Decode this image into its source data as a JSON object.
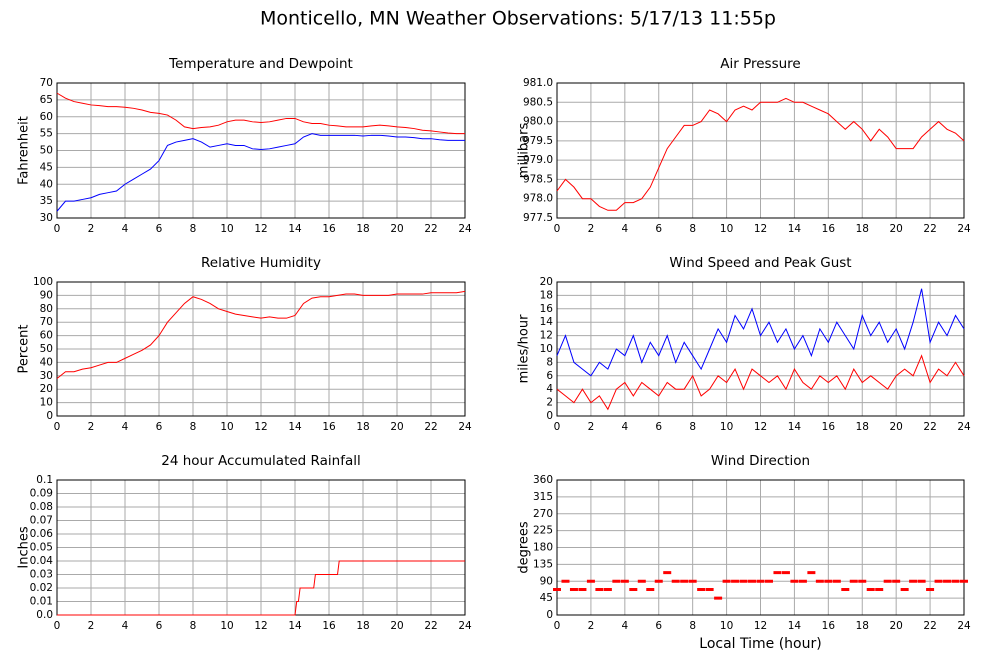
{
  "title": "Monticello, MN Weather Observations: 5/17/13 11:55p",
  "chart_data": [
    {
      "type": "line",
      "title": "Temperature and Dewpoint",
      "ylabel": "Fahrenheit",
      "x": [
        0,
        0.5,
        1,
        1.5,
        2,
        2.5,
        3,
        3.5,
        4,
        4.5,
        5,
        5.5,
        6,
        6.5,
        7,
        7.5,
        8,
        8.5,
        9,
        9.5,
        10,
        10.5,
        11,
        11.5,
        12,
        12.5,
        13,
        13.5,
        14,
        14.5,
        15,
        15.5,
        16,
        16.5,
        17,
        17.5,
        18,
        18.5,
        19,
        19.5,
        20,
        20.5,
        21,
        21.5,
        22,
        22.5,
        23,
        23.5,
        24
      ],
      "series": [
        {
          "name": "Temperature",
          "color": "#ff0000",
          "values": [
            67,
            65.5,
            64.5,
            64,
            63.5,
            63.3,
            63,
            63,
            62.8,
            62.5,
            62,
            61.3,
            61,
            60.5,
            59,
            57,
            56.5,
            56.8,
            57,
            57.5,
            58.5,
            59,
            59,
            58.5,
            58.3,
            58.5,
            59,
            59.5,
            59.5,
            58.5,
            58,
            58,
            57.5,
            57.3,
            57,
            57,
            57,
            57.3,
            57.5,
            57.3,
            57,
            56.8,
            56.5,
            56,
            55.8,
            55.5,
            55.2,
            55,
            55
          ]
        },
        {
          "name": "Dewpoint",
          "color": "#0000ff",
          "values": [
            32,
            35,
            35,
            35.5,
            36,
            37,
            37.5,
            38,
            40,
            41.5,
            43,
            44.5,
            47,
            51.5,
            52.5,
            53,
            53.5,
            52.5,
            51,
            51.5,
            52,
            51.5,
            51.5,
            50.5,
            50.3,
            50.5,
            51,
            51.5,
            52,
            54,
            55,
            54.5,
            54.5,
            54.5,
            54.5,
            54.5,
            54.3,
            54.5,
            54.5,
            54.3,
            54,
            54,
            53.8,
            53.5,
            53.5,
            53.2,
            53,
            53,
            53
          ]
        }
      ],
      "xlim": [
        0,
        24
      ],
      "xticks": [
        0,
        2,
        4,
        6,
        8,
        10,
        12,
        14,
        16,
        18,
        20,
        22,
        24
      ],
      "ylim": [
        30,
        70
      ],
      "yticks": [
        30,
        35,
        40,
        45,
        50,
        55,
        60,
        65,
        70
      ],
      "grid": true
    },
    {
      "type": "line",
      "title": "Air Pressure",
      "ylabel": "millibars",
      "x": [
        0,
        0.5,
        1,
        1.5,
        2,
        2.5,
        3,
        3.5,
        4,
        4.5,
        5,
        5.5,
        6,
        6.5,
        7,
        7.5,
        8,
        8.5,
        9,
        9.5,
        10,
        10.5,
        11,
        11.5,
        12,
        12.5,
        13,
        13.5,
        14,
        14.5,
        15,
        15.5,
        16,
        16.5,
        17,
        17.5,
        18,
        18.5,
        19,
        19.5,
        20,
        20.5,
        21,
        21.5,
        22,
        22.5,
        23,
        23.5,
        24
      ],
      "series": [
        {
          "name": "Pressure",
          "color": "#ff0000",
          "values": [
            978.2,
            978.5,
            978.3,
            978.0,
            978.0,
            977.8,
            977.7,
            977.7,
            977.9,
            977.9,
            978.0,
            978.3,
            978.8,
            979.3,
            979.6,
            979.9,
            979.9,
            980.0,
            980.3,
            980.2,
            980.0,
            980.3,
            980.4,
            980.3,
            980.5,
            980.5,
            980.5,
            980.6,
            980.5,
            980.5,
            980.4,
            980.3,
            980.2,
            980.0,
            979.8,
            980.0,
            979.8,
            979.5,
            979.8,
            979.6,
            979.3,
            979.3,
            979.3,
            979.6,
            979.8,
            980.0,
            979.8,
            979.7,
            979.5
          ]
        }
      ],
      "xlim": [
        0,
        24
      ],
      "xticks": [
        0,
        2,
        4,
        6,
        8,
        10,
        12,
        14,
        16,
        18,
        20,
        22,
        24
      ],
      "ylim": [
        977.5,
        981
      ],
      "yticks": [
        977.5,
        {
          "value": 978,
          "label": "978.0"
        },
        978.5,
        {
          "value": 979,
          "label": "979.0"
        },
        979.5,
        {
          "value": 980,
          "label": "980.0"
        },
        980.5,
        {
          "value": 981,
          "label": "981.0"
        }
      ],
      "grid": true
    },
    {
      "type": "line",
      "title": "Relative Humidity",
      "ylabel": "Percent",
      "x": [
        0,
        0.5,
        1,
        1.5,
        2,
        2.5,
        3,
        3.5,
        4,
        4.5,
        5,
        5.5,
        6,
        6.5,
        7,
        7.5,
        8,
        8.5,
        9,
        9.5,
        10,
        10.5,
        11,
        11.5,
        12,
        12.5,
        13,
        13.5,
        14,
        14.5,
        15,
        15.5,
        16,
        16.5,
        17,
        17.5,
        18,
        18.5,
        19,
        19.5,
        20,
        20.5,
        21,
        21.5,
        22,
        22.5,
        23,
        23.5,
        24
      ],
      "series": [
        {
          "name": "Humidity",
          "color": "#ff0000",
          "values": [
            28,
            33,
            33,
            35,
            36,
            38,
            40,
            40,
            43,
            46,
            49,
            53,
            60,
            70,
            77,
            84,
            89,
            87,
            84,
            80,
            78,
            76,
            75,
            74,
            73,
            74,
            73,
            73,
            75,
            84,
            88,
            89,
            89,
            90,
            91,
            91,
            90,
            90,
            90,
            90,
            91,
            91,
            91,
            91,
            92,
            92,
            92,
            92,
            93
          ]
        }
      ],
      "xlim": [
        0,
        24
      ],
      "xticks": [
        0,
        2,
        4,
        6,
        8,
        10,
        12,
        14,
        16,
        18,
        20,
        22,
        24
      ],
      "ylim": [
        0,
        100
      ],
      "yticks": [
        0,
        10,
        20,
        30,
        40,
        50,
        60,
        70,
        80,
        90,
        100
      ],
      "grid": true
    },
    {
      "type": "line",
      "title": "Wind Speed and Peak Gust",
      "ylabel": "miles/hour",
      "x": [
        0,
        0.5,
        1,
        1.5,
        2,
        2.5,
        3,
        3.5,
        4,
        4.5,
        5,
        5.5,
        6,
        6.5,
        7,
        7.5,
        8,
        8.5,
        9,
        9.5,
        10,
        10.5,
        11,
        11.5,
        12,
        12.5,
        13,
        13.5,
        14,
        14.5,
        15,
        15.5,
        16,
        16.5,
        17,
        17.5,
        18,
        18.5,
        19,
        19.5,
        20,
        20.5,
        21,
        21.5,
        22,
        22.5,
        23,
        23.5,
        24
      ],
      "series": [
        {
          "name": "Peak Gust",
          "color": "#0000ff",
          "values": [
            9,
            12,
            8,
            7,
            6,
            8,
            7,
            10,
            9,
            12,
            8,
            11,
            9,
            12,
            8,
            11,
            9,
            7,
            10,
            13,
            11,
            15,
            13,
            16,
            12,
            14,
            11,
            13,
            10,
            12,
            9,
            13,
            11,
            14,
            12,
            10,
            15,
            12,
            14,
            11,
            13,
            10,
            14,
            19,
            11,
            14,
            12,
            15,
            13
          ]
        },
        {
          "name": "Wind Speed",
          "color": "#ff0000",
          "values": [
            4,
            3,
            2,
            4,
            2,
            3,
            1,
            4,
            5,
            3,
            5,
            4,
            3,
            5,
            4,
            4,
            6,
            3,
            4,
            6,
            5,
            7,
            4,
            7,
            6,
            5,
            6,
            4,
            7,
            5,
            4,
            6,
            5,
            6,
            4,
            7,
            5,
            6,
            5,
            4,
            6,
            7,
            6,
            9,
            5,
            7,
            6,
            8,
            6
          ]
        }
      ],
      "xlim": [
        0,
        24
      ],
      "xticks": [
        0,
        2,
        4,
        6,
        8,
        10,
        12,
        14,
        16,
        18,
        20,
        22,
        24
      ],
      "ylim": [
        0,
        20
      ],
      "yticks": [
        0,
        2,
        4,
        6,
        8,
        10,
        12,
        14,
        16,
        18,
        20
      ],
      "grid": true
    },
    {
      "type": "line",
      "title": "24 hour Accumulated Rainfall",
      "ylabel": "Inches",
      "x": [
        0,
        14,
        14.1,
        14.2,
        14.3,
        15.1,
        15.2,
        16.5,
        16.6,
        24
      ],
      "series": [
        {
          "name": "Rainfall",
          "color": "#ff0000",
          "values": [
            0,
            0,
            0.01,
            0.01,
            0.02,
            0.02,
            0.03,
            0.03,
            0.04,
            0.04
          ]
        }
      ],
      "xlim": [
        0,
        24
      ],
      "xticks": [
        0,
        2,
        4,
        6,
        8,
        10,
        12,
        14,
        16,
        18,
        20,
        22,
        24
      ],
      "ylim": [
        0,
        0.1
      ],
      "yticks": [
        {
          "value": 0,
          "label": "0.0"
        },
        0.01,
        0.02,
        0.03,
        0.04,
        0.05,
        0.06,
        0.07,
        0.08,
        0.09,
        0.1
      ],
      "grid": true
    },
    {
      "type": "scatter",
      "title": "Wind Direction",
      "ylabel": "degrees",
      "xlabel": "Local Time (hour)",
      "x": [
        0,
        0.5,
        1,
        1.5,
        2,
        2.5,
        3,
        3.5,
        4,
        4.5,
        5,
        5.5,
        6,
        6.5,
        7,
        7.5,
        8,
        8.5,
        9,
        9.5,
        10,
        10.5,
        11,
        11.5,
        12,
        12.5,
        13,
        13.5,
        14,
        14.5,
        15,
        15.5,
        16,
        16.5,
        17,
        17.5,
        18,
        18.5,
        19,
        19.5,
        20,
        20.5,
        21,
        21.5,
        22,
        22.5,
        23,
        23.5,
        24
      ],
      "series": [
        {
          "name": "Direction",
          "color": "#ff0000",
          "values": [
            68,
            90,
            68,
            68,
            90,
            68,
            68,
            90,
            90,
            68,
            90,
            68,
            90,
            113,
            90,
            90,
            90,
            68,
            68,
            45,
            90,
            90,
            90,
            90,
            90,
            90,
            113,
            113,
            90,
            90,
            113,
            90,
            90,
            90,
            68,
            90,
            90,
            68,
            68,
            90,
            90,
            68,
            90,
            90,
            68,
            90,
            90,
            90,
            90
          ]
        }
      ],
      "xlim": [
        0,
        24
      ],
      "xticks": [
        0,
        2,
        4,
        6,
        8,
        10,
        12,
        14,
        16,
        18,
        20,
        22,
        24
      ],
      "ylim": [
        0,
        360
      ],
      "yticks": [
        0,
        45,
        90,
        135,
        180,
        225,
        270,
        315,
        360
      ],
      "grid": true
    }
  ]
}
